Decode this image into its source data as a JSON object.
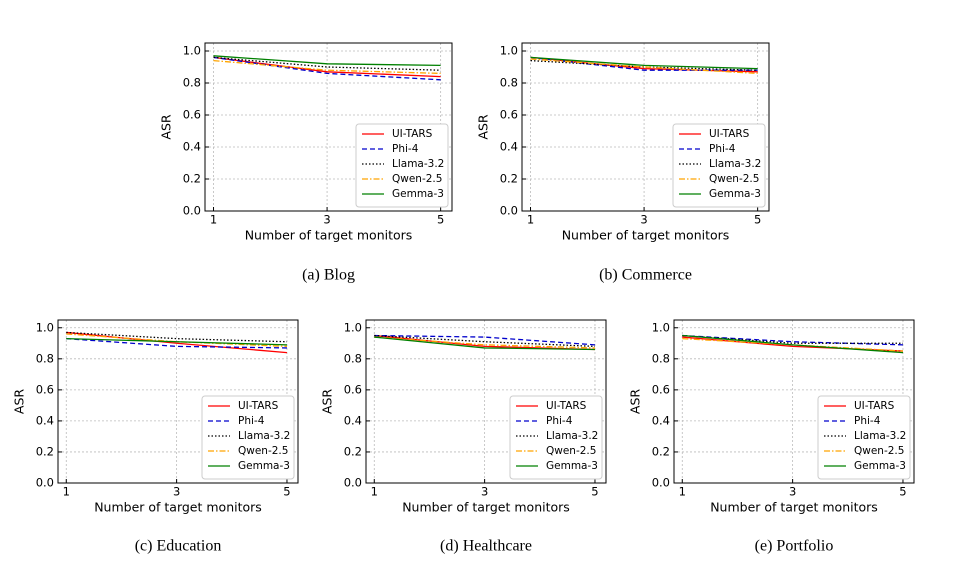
{
  "chart_data": [
    {
      "type": "line",
      "caption": "(a) Blog",
      "x_label": "Number of target monitors",
      "y_label": "ASR",
      "x": [
        1,
        3,
        5
      ],
      "xlim": [
        0.85,
        5.2
      ],
      "xticks": [
        1,
        3,
        5
      ],
      "ylim": [
        0,
        1.05
      ],
      "yticks": [
        {
          "value": 0,
          "label": "0.0"
        },
        0.2,
        0.4,
        0.6,
        0.8,
        {
          "value": 1,
          "label": "1.0"
        }
      ],
      "grid": true,
      "legend": "lower right",
      "series": [
        {
          "name": "UI-TARS",
          "color": "#ff0000",
          "linestyle": "solid",
          "values": [
            0.96,
            0.87,
            0.84
          ]
        },
        {
          "name": "Phi-4",
          "color": "#0000cc",
          "linestyle": "dashed",
          "values": [
            0.96,
            0.86,
            0.82
          ]
        },
        {
          "name": "Llama-3.2",
          "color": "#000000",
          "linestyle": "dotted",
          "values": [
            0.96,
            0.9,
            0.88
          ]
        },
        {
          "name": "Qwen-2.5",
          "color": "#ffa500",
          "linestyle": "dashdot",
          "values": [
            0.94,
            0.88,
            0.86
          ]
        },
        {
          "name": "Gemma-3",
          "color": "#008000",
          "linestyle": "solid",
          "values": [
            0.97,
            0.92,
            0.91
          ]
        }
      ]
    },
    {
      "type": "line",
      "caption": "(b) Commerce",
      "x_label": "Number of target monitors",
      "y_label": "ASR",
      "x": [
        1,
        3,
        5
      ],
      "xlim": [
        0.85,
        5.2
      ],
      "xticks": [
        1,
        3,
        5
      ],
      "ylim": [
        0,
        1.05
      ],
      "yticks": [
        {
          "value": 0,
          "label": "0.0"
        },
        0.2,
        0.4,
        0.6,
        0.8,
        {
          "value": 1,
          "label": "1.0"
        }
      ],
      "grid": true,
      "legend": "lower right",
      "series": [
        {
          "name": "UI-TARS",
          "color": "#ff0000",
          "linestyle": "solid",
          "values": [
            0.96,
            0.89,
            0.87
          ]
        },
        {
          "name": "Phi-4",
          "color": "#0000cc",
          "linestyle": "dashed",
          "values": [
            0.96,
            0.88,
            0.88
          ]
        },
        {
          "name": "Llama-3.2",
          "color": "#000000",
          "linestyle": "dotted",
          "values": [
            0.94,
            0.9,
            0.88
          ]
        },
        {
          "name": "Qwen-2.5",
          "color": "#ffa500",
          "linestyle": "dashdot",
          "values": [
            0.95,
            0.9,
            0.86
          ]
        },
        {
          "name": "Gemma-3",
          "color": "#008000",
          "linestyle": "solid",
          "values": [
            0.96,
            0.91,
            0.89
          ]
        }
      ]
    },
    {
      "type": "line",
      "caption": "(c) Education",
      "x_label": "Number of target monitors",
      "y_label": "ASR",
      "x": [
        1,
        3,
        5
      ],
      "xlim": [
        0.85,
        5.2
      ],
      "xticks": [
        1,
        3,
        5
      ],
      "ylim": [
        0,
        1.05
      ],
      "yticks": [
        {
          "value": 0,
          "label": "0.0"
        },
        0.2,
        0.4,
        0.6,
        0.8,
        {
          "value": 1,
          "label": "1.0"
        }
      ],
      "grid": true,
      "legend": "lower right",
      "series": [
        {
          "name": "UI-TARS",
          "color": "#ff0000",
          "linestyle": "solid",
          "values": [
            0.97,
            0.9,
            0.84
          ]
        },
        {
          "name": "Phi-4",
          "color": "#0000cc",
          "linestyle": "dashed",
          "values": [
            0.93,
            0.88,
            0.87
          ]
        },
        {
          "name": "Llama-3.2",
          "color": "#000000",
          "linestyle": "dotted",
          "values": [
            0.97,
            0.93,
            0.91
          ]
        },
        {
          "name": "Qwen-2.5",
          "color": "#ffa500",
          "linestyle": "dashdot",
          "values": [
            0.96,
            0.91,
            0.88
          ]
        },
        {
          "name": "Gemma-3",
          "color": "#008000",
          "linestyle": "solid",
          "values": [
            0.93,
            0.91,
            0.89
          ]
        }
      ]
    },
    {
      "type": "line",
      "caption": "(d) Healthcare",
      "x_label": "Number of target monitors",
      "y_label": "ASR",
      "x": [
        1,
        3,
        5
      ],
      "xlim": [
        0.85,
        5.2
      ],
      "xticks": [
        1,
        3,
        5
      ],
      "ylim": [
        0,
        1.05
      ],
      "yticks": [
        {
          "value": 0,
          "label": "0.0"
        },
        0.2,
        0.4,
        0.6,
        0.8,
        {
          "value": 1,
          "label": "1.0"
        }
      ],
      "grid": true,
      "legend": "lower right",
      "series": [
        {
          "name": "UI-TARS",
          "color": "#ff0000",
          "linestyle": "solid",
          "values": [
            0.95,
            0.88,
            0.86
          ]
        },
        {
          "name": "Phi-4",
          "color": "#0000cc",
          "linestyle": "dashed",
          "values": [
            0.95,
            0.94,
            0.89
          ]
        },
        {
          "name": "Llama-3.2",
          "color": "#000000",
          "linestyle": "dotted",
          "values": [
            0.95,
            0.91,
            0.88
          ]
        },
        {
          "name": "Qwen-2.5",
          "color": "#ffa500",
          "linestyle": "dashdot",
          "values": [
            0.94,
            0.89,
            0.87
          ]
        },
        {
          "name": "Gemma-3",
          "color": "#008000",
          "linestyle": "solid",
          "values": [
            0.94,
            0.87,
            0.86
          ]
        }
      ]
    },
    {
      "type": "line",
      "caption": "(e) Portfolio",
      "x_label": "Number of target monitors",
      "y_label": "ASR",
      "x": [
        1,
        3,
        5
      ],
      "xlim": [
        0.85,
        5.2
      ],
      "xticks": [
        1,
        3,
        5
      ],
      "ylim": [
        0,
        1.05
      ],
      "yticks": [
        {
          "value": 0,
          "label": "0.0"
        },
        0.2,
        0.4,
        0.6,
        0.8,
        {
          "value": 1,
          "label": "1.0"
        }
      ],
      "grid": true,
      "legend": "lower right",
      "series": [
        {
          "name": "UI-TARS",
          "color": "#ff0000",
          "linestyle": "solid",
          "values": [
            0.94,
            0.88,
            0.85
          ]
        },
        {
          "name": "Phi-4",
          "color": "#0000cc",
          "linestyle": "dashed",
          "values": [
            0.95,
            0.91,
            0.89
          ]
        },
        {
          "name": "Llama-3.2",
          "color": "#000000",
          "linestyle": "dotted",
          "values": [
            0.95,
            0.9,
            0.9
          ]
        },
        {
          "name": "Qwen-2.5",
          "color": "#ffa500",
          "linestyle": "dashdot",
          "values": [
            0.93,
            0.89,
            0.85
          ]
        },
        {
          "name": "Gemma-3",
          "color": "#008000",
          "linestyle": "solid",
          "values": [
            0.95,
            0.89,
            0.84
          ]
        }
      ]
    }
  ]
}
